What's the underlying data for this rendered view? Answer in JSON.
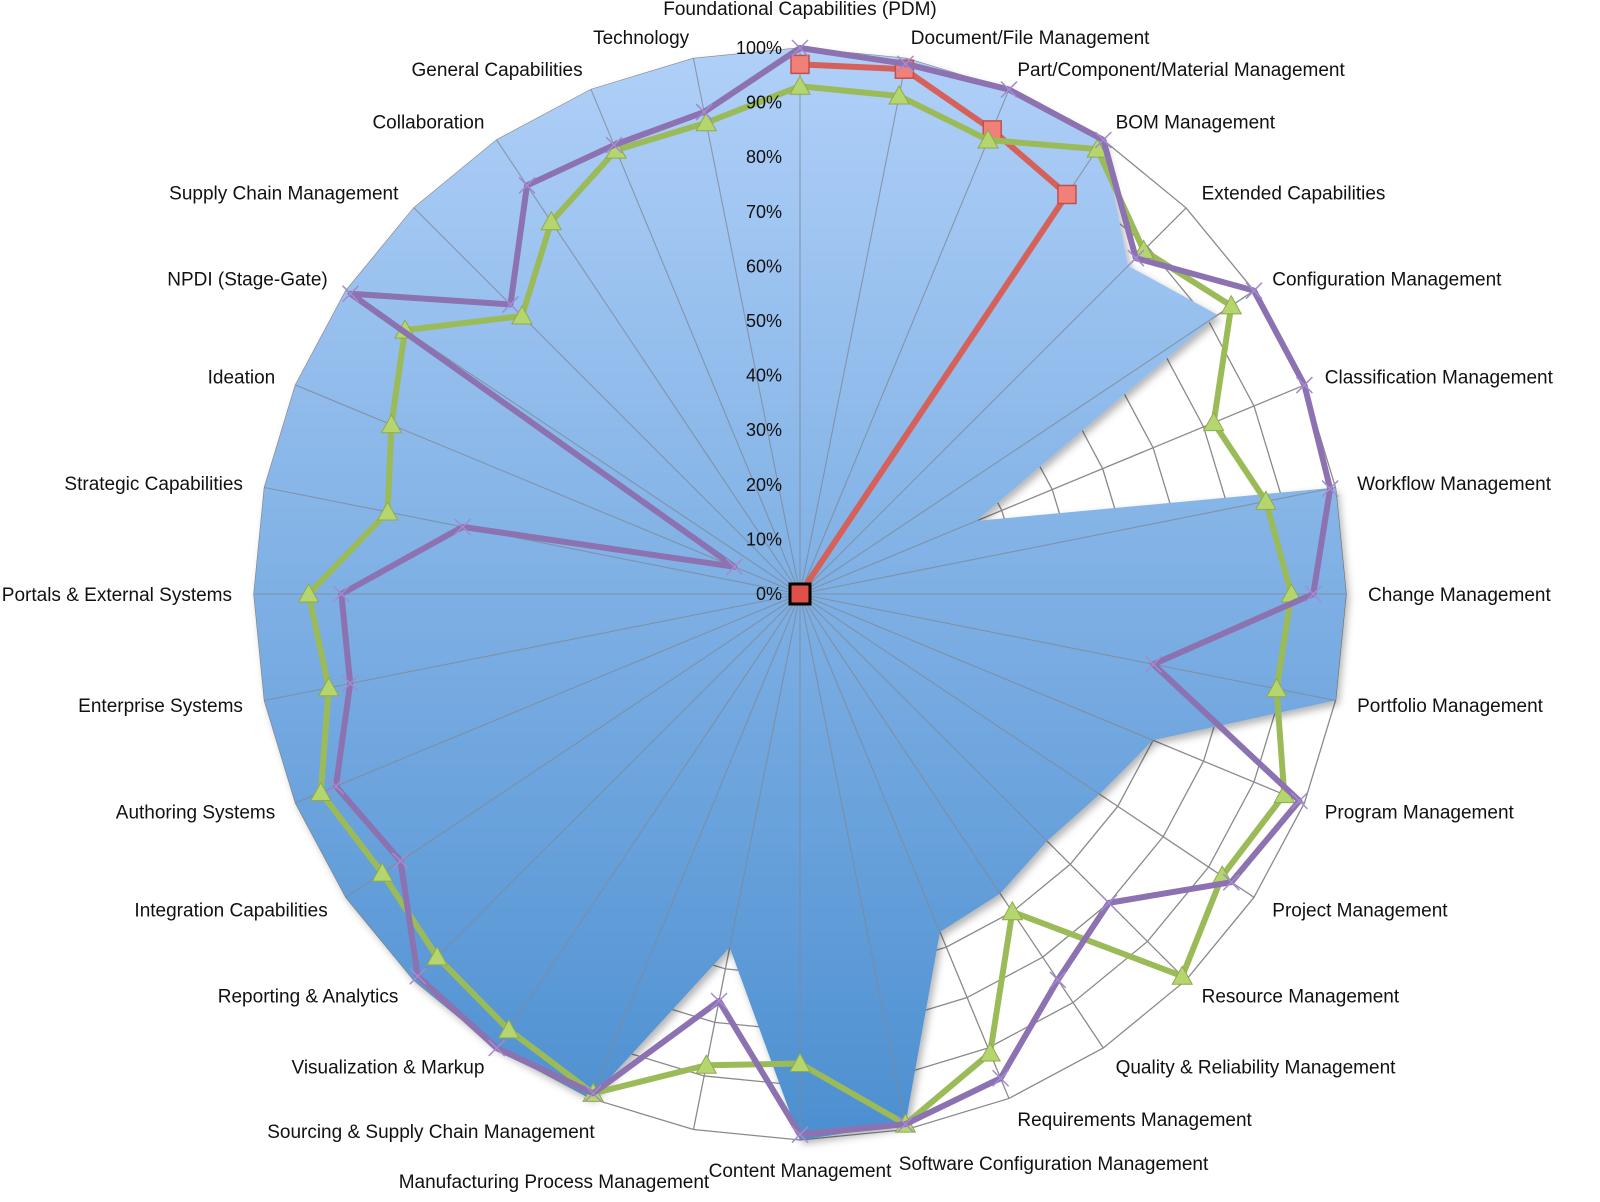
{
  "chart_data": {
    "type": "radar",
    "title": "",
    "categories": [
      "Foundational Capabilities (PDM)",
      "Document/File Management",
      "Part/Component/Material Management",
      "BOM Management",
      "Extended Capabilities",
      "Configuration Management",
      "Classification Management",
      "Workflow Management",
      "Change Management",
      "Portfolio Management",
      "Program Management",
      "Project Management",
      "Resource Management",
      "Quality & Reliability Management",
      "Requirements Management",
      "Software Configuration Management",
      "Content Management",
      "Manufacturing Process Management",
      "Sourcing & Supply Chain Management",
      "Visualization & Markup",
      "Reporting & Analytics",
      "Integration Capabilities",
      "Authoring Systems",
      "Enterprise Systems",
      "Portals & External Systems",
      "Strategic Capabilities",
      "Ideation",
      "NPDI (Stage-Gate)",
      "Supply Chain Management",
      "Collaboration",
      "General Capabilities",
      "Technology"
    ],
    "tick_labels": [
      "0%",
      "10%",
      "20%",
      "30%",
      "40%",
      "50%",
      "60%",
      "70%",
      "80%",
      "90%",
      "100%"
    ],
    "range": [
      0,
      100
    ],
    "grid": true,
    "legend": "none",
    "series": [
      {
        "kind": "filled-area",
        "color": "#5b9bd5",
        "values": [
          100,
          100,
          100,
          100,
          85,
          92,
          35,
          100,
          100,
          100,
          70,
          66,
          64,
          66,
          67,
          99,
          100,
          66,
          100,
          100,
          100,
          100,
          100,
          100,
          100,
          100,
          100,
          100,
          100,
          100,
          100,
          100
        ]
      },
      {
        "kind": "line",
        "marker": "square",
        "color": "#d6605a",
        "values": [
          97,
          98,
          92,
          88,
          0,
          0,
          0,
          0,
          0,
          0,
          0,
          0,
          0,
          0,
          0,
          0,
          0,
          0,
          0,
          0,
          0,
          0,
          0,
          0,
          0,
          0,
          0,
          0,
          0,
          0,
          0,
          0
        ]
      },
      {
        "kind": "line",
        "marker": "triangle",
        "color": "#9bbb59",
        "values": [
          93,
          93,
          90,
          98,
          89,
          95,
          82,
          87,
          90,
          89,
          96,
          93,
          99,
          70,
          91,
          99,
          86,
          88,
          99,
          96,
          94,
          92,
          95,
          88,
          90,
          77,
          81,
          87,
          72,
          82,
          88,
          88
        ]
      },
      {
        "kind": "line",
        "marker": "x",
        "color": "#8c72b0",
        "values": [
          100,
          99,
          100,
          100,
          87,
          100,
          100,
          99,
          94,
          66,
          99,
          95,
          80,
          85,
          96,
          99,
          99,
          76,
          99,
          100,
          99,
          88,
          92,
          84,
          84,
          63,
          13,
          99,
          75,
          90,
          89,
          90
        ]
      }
    ]
  }
}
